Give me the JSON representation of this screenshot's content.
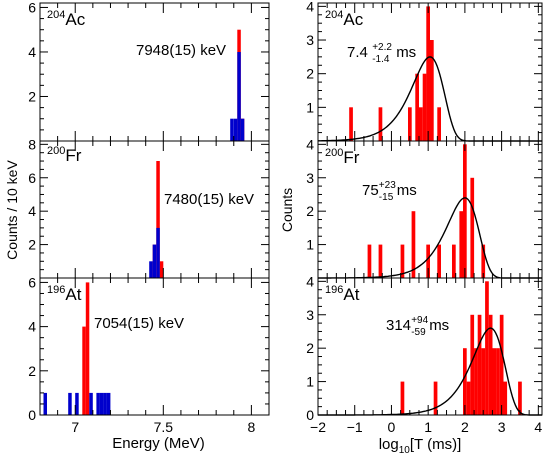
{
  "chart_data": [
    {
      "type": "bar",
      "nucleus": "Ac",
      "mass": "204",
      "annotation": "7948(15) keV",
      "xlim": [
        6.8,
        8.1
      ],
      "ylim": [
        0,
        6.2
      ],
      "ytick_labels": [
        "2",
        "4",
        "6"
      ],
      "grid": false,
      "series": [
        {
          "color": "#ff0000",
          "x": [
            7.93,
            7.95
          ],
          "values": [
            5,
            1
          ]
        },
        {
          "color": "#0000cc",
          "x": [
            7.89,
            7.91,
            7.93,
            7.95
          ],
          "values": [
            1,
            1,
            4,
            1
          ]
        }
      ]
    },
    {
      "type": "bar",
      "nucleus": "Fr",
      "mass": "200",
      "annotation": "7480(15) keV",
      "xlim": [
        6.8,
        8.1
      ],
      "ylim": [
        0,
        8.2
      ],
      "ytick_labels": [
        "2",
        "4",
        "6",
        "8"
      ],
      "grid": false,
      "series": [
        {
          "color": "#ff0000",
          "x": [
            7.45,
            7.47,
            7.49
          ],
          "values": [
            2,
            7,
            1
          ]
        },
        {
          "color": "#0000cc",
          "x": [
            7.43,
            7.45,
            7.47
          ],
          "values": [
            1,
            2,
            3
          ]
        }
      ]
    },
    {
      "type": "bar",
      "nucleus": "At",
      "mass": "196",
      "annotation": "7054(15) keV",
      "xlim": [
        6.8,
        8.1
      ],
      "ylim": [
        0,
        6.2
      ],
      "ytick_labels": [
        "0",
        "2",
        "4",
        "6"
      ],
      "xtick_labels": [
        "7",
        "7.5",
        "8"
      ],
      "xlabel": "Energy (MeV)",
      "grid": false,
      "series": [
        {
          "color": "#ff0000",
          "x": [
            7.05,
            7.07
          ],
          "values": [
            4,
            6
          ]
        },
        {
          "color": "#0000cc",
          "x": [
            6.83,
            6.97,
            7.01,
            7.09,
            7.13,
            7.15,
            7.17,
            7.19
          ],
          "values": [
            1,
            1,
            1,
            1,
            1,
            1,
            1,
            1
          ]
        }
      ]
    },
    {
      "type": "bar",
      "nucleus": "Ac",
      "mass": "204",
      "lifetime": {
        "value": "7.4",
        "up": "+2.2",
        "down": "-1.4",
        "unit": " ms"
      },
      "xlim": [
        -2,
        4.1
      ],
      "ylim": [
        0,
        4.1
      ],
      "ytick_labels": [
        "1",
        "2",
        "3",
        "4"
      ],
      "grid": false,
      "series": [
        {
          "color": "#ff0000",
          "x": [
            -1.1,
            -0.3,
            0.5,
            0.7,
            0.8,
            0.9,
            1.0,
            1.1,
            1.3
          ],
          "values": [
            1,
            1,
            1,
            2,
            1,
            2,
            4,
            3,
            1
          ]
        },
        {
          "type": "line",
          "color": "#000000",
          "fit_peak_x": 1.05,
          "fit_peak_y": 2.5
        }
      ]
    },
    {
      "type": "bar",
      "nucleus": "Fr",
      "mass": "200",
      "lifetime": {
        "value": "75",
        "up": "+23",
        "down": "-15",
        "unit": " ms"
      },
      "xlim": [
        -2,
        4.1
      ],
      "ylim": [
        0,
        4.1
      ],
      "ytick_labels": [
        "1",
        "2",
        "3",
        "4"
      ],
      "grid": false,
      "series": [
        {
          "color": "#ff0000",
          "x": [
            -0.6,
            -0.3,
            0.3,
            0.6,
            1.0,
            1.3,
            1.7,
            1.9,
            2.0,
            2.2,
            2.5
          ],
          "values": [
            1,
            1,
            1,
            2,
            1,
            1,
            1,
            2,
            4,
            3,
            1
          ]
        },
        {
          "type": "line",
          "color": "#000000",
          "fit_peak_x": 2.0,
          "fit_peak_y": 2.4
        }
      ]
    },
    {
      "type": "bar",
      "nucleus": "At",
      "mass": "196",
      "lifetime": {
        "value": "314",
        "up": "+94",
        "down": "-59",
        "unit": " ms"
      },
      "xlim": [
        -2,
        4.1
      ],
      "ylim": [
        0,
        4.1
      ],
      "ytick_labels": [
        "0",
        "1",
        "2",
        "3",
        "4"
      ],
      "xtick_labels": [
        "−2",
        "−1",
        "0",
        "1",
        "2",
        "3",
        "4"
      ],
      "grid": false,
      "series": [
        {
          "color": "#ff0000",
          "x": [
            0.3,
            1.2,
            2.0,
            2.1,
            2.2,
            2.3,
            2.4,
            2.5,
            2.6,
            2.7,
            2.8,
            2.9,
            3.0,
            3.1,
            3.5
          ],
          "values": [
            1,
            1,
            2,
            1,
            3,
            2,
            3,
            2,
            4,
            3,
            2,
            2,
            3,
            1,
            1
          ]
        },
        {
          "type": "line",
          "color": "#000000",
          "fit_peak_x": 2.7,
          "fit_peak_y": 2.6
        }
      ]
    }
  ],
  "left_ylabel": "Counts / 10 keV",
  "right_ylabel": "Counts",
  "right_xlabel_main": "log",
  "right_xlabel_sub": "10",
  "right_xlabel_rest": "[T (ms)]"
}
